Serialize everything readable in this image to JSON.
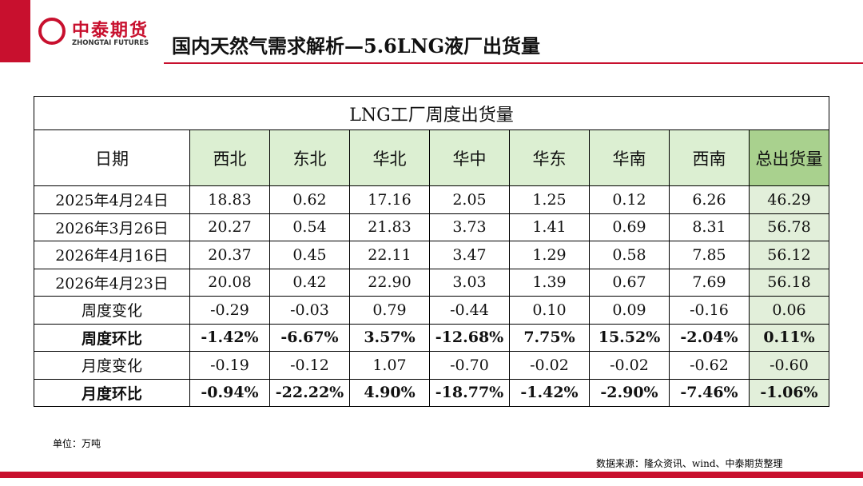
{
  "logo": {
    "name": "中泰期货",
    "english": "ZHONGTAI FUTURES"
  },
  "header": {
    "title": "国内天然气需求解析—5.6LNG液厂出货量"
  },
  "table": {
    "title": "LNG工厂周度出货量",
    "columns": [
      "日期",
      "西北",
      "东北",
      "华北",
      "华中",
      "华东",
      "华南",
      "西南",
      "总出货量"
    ],
    "rows": [
      [
        "2025年4月24日",
        "18.83",
        "0.62",
        "17.16",
        "2.05",
        "1.25",
        "0.12",
        "6.26",
        "46.29"
      ],
      [
        "2026年3月26日",
        "20.27",
        "0.54",
        "21.83",
        "3.73",
        "1.41",
        "0.69",
        "8.31",
        "56.78"
      ],
      [
        "2026年4月16日",
        "20.37",
        "0.45",
        "22.11",
        "3.47",
        "1.29",
        "0.58",
        "7.85",
        "56.12"
      ],
      [
        "2026年4月23日",
        "20.08",
        "0.42",
        "22.90",
        "3.03",
        "1.39",
        "0.67",
        "7.69",
        "56.18"
      ],
      [
        "周度变化",
        "-0.29",
        "-0.03",
        "0.79",
        "-0.44",
        "0.10",
        "0.09",
        "-0.16",
        "0.06"
      ],
      [
        "周度环比",
        "-1.42%",
        "-6.67%",
        "3.57%",
        "-12.68%",
        "7.75%",
        "15.52%",
        "-2.04%",
        "0.11%"
      ],
      [
        "月度变化",
        "-0.19",
        "-0.12",
        "1.07",
        "-0.70",
        "-0.02",
        "-0.02",
        "-0.62",
        "-0.60"
      ],
      [
        "月度环比",
        "-0.94%",
        "-22.22%",
        "4.90%",
        "-18.77%",
        "-1.42%",
        "-2.90%",
        "-7.46%",
        "-1.06%"
      ]
    ]
  },
  "footer": {
    "unit": "单位：万吨",
    "source": "数据来源：隆众资讯、wind、中泰期货整理"
  }
}
